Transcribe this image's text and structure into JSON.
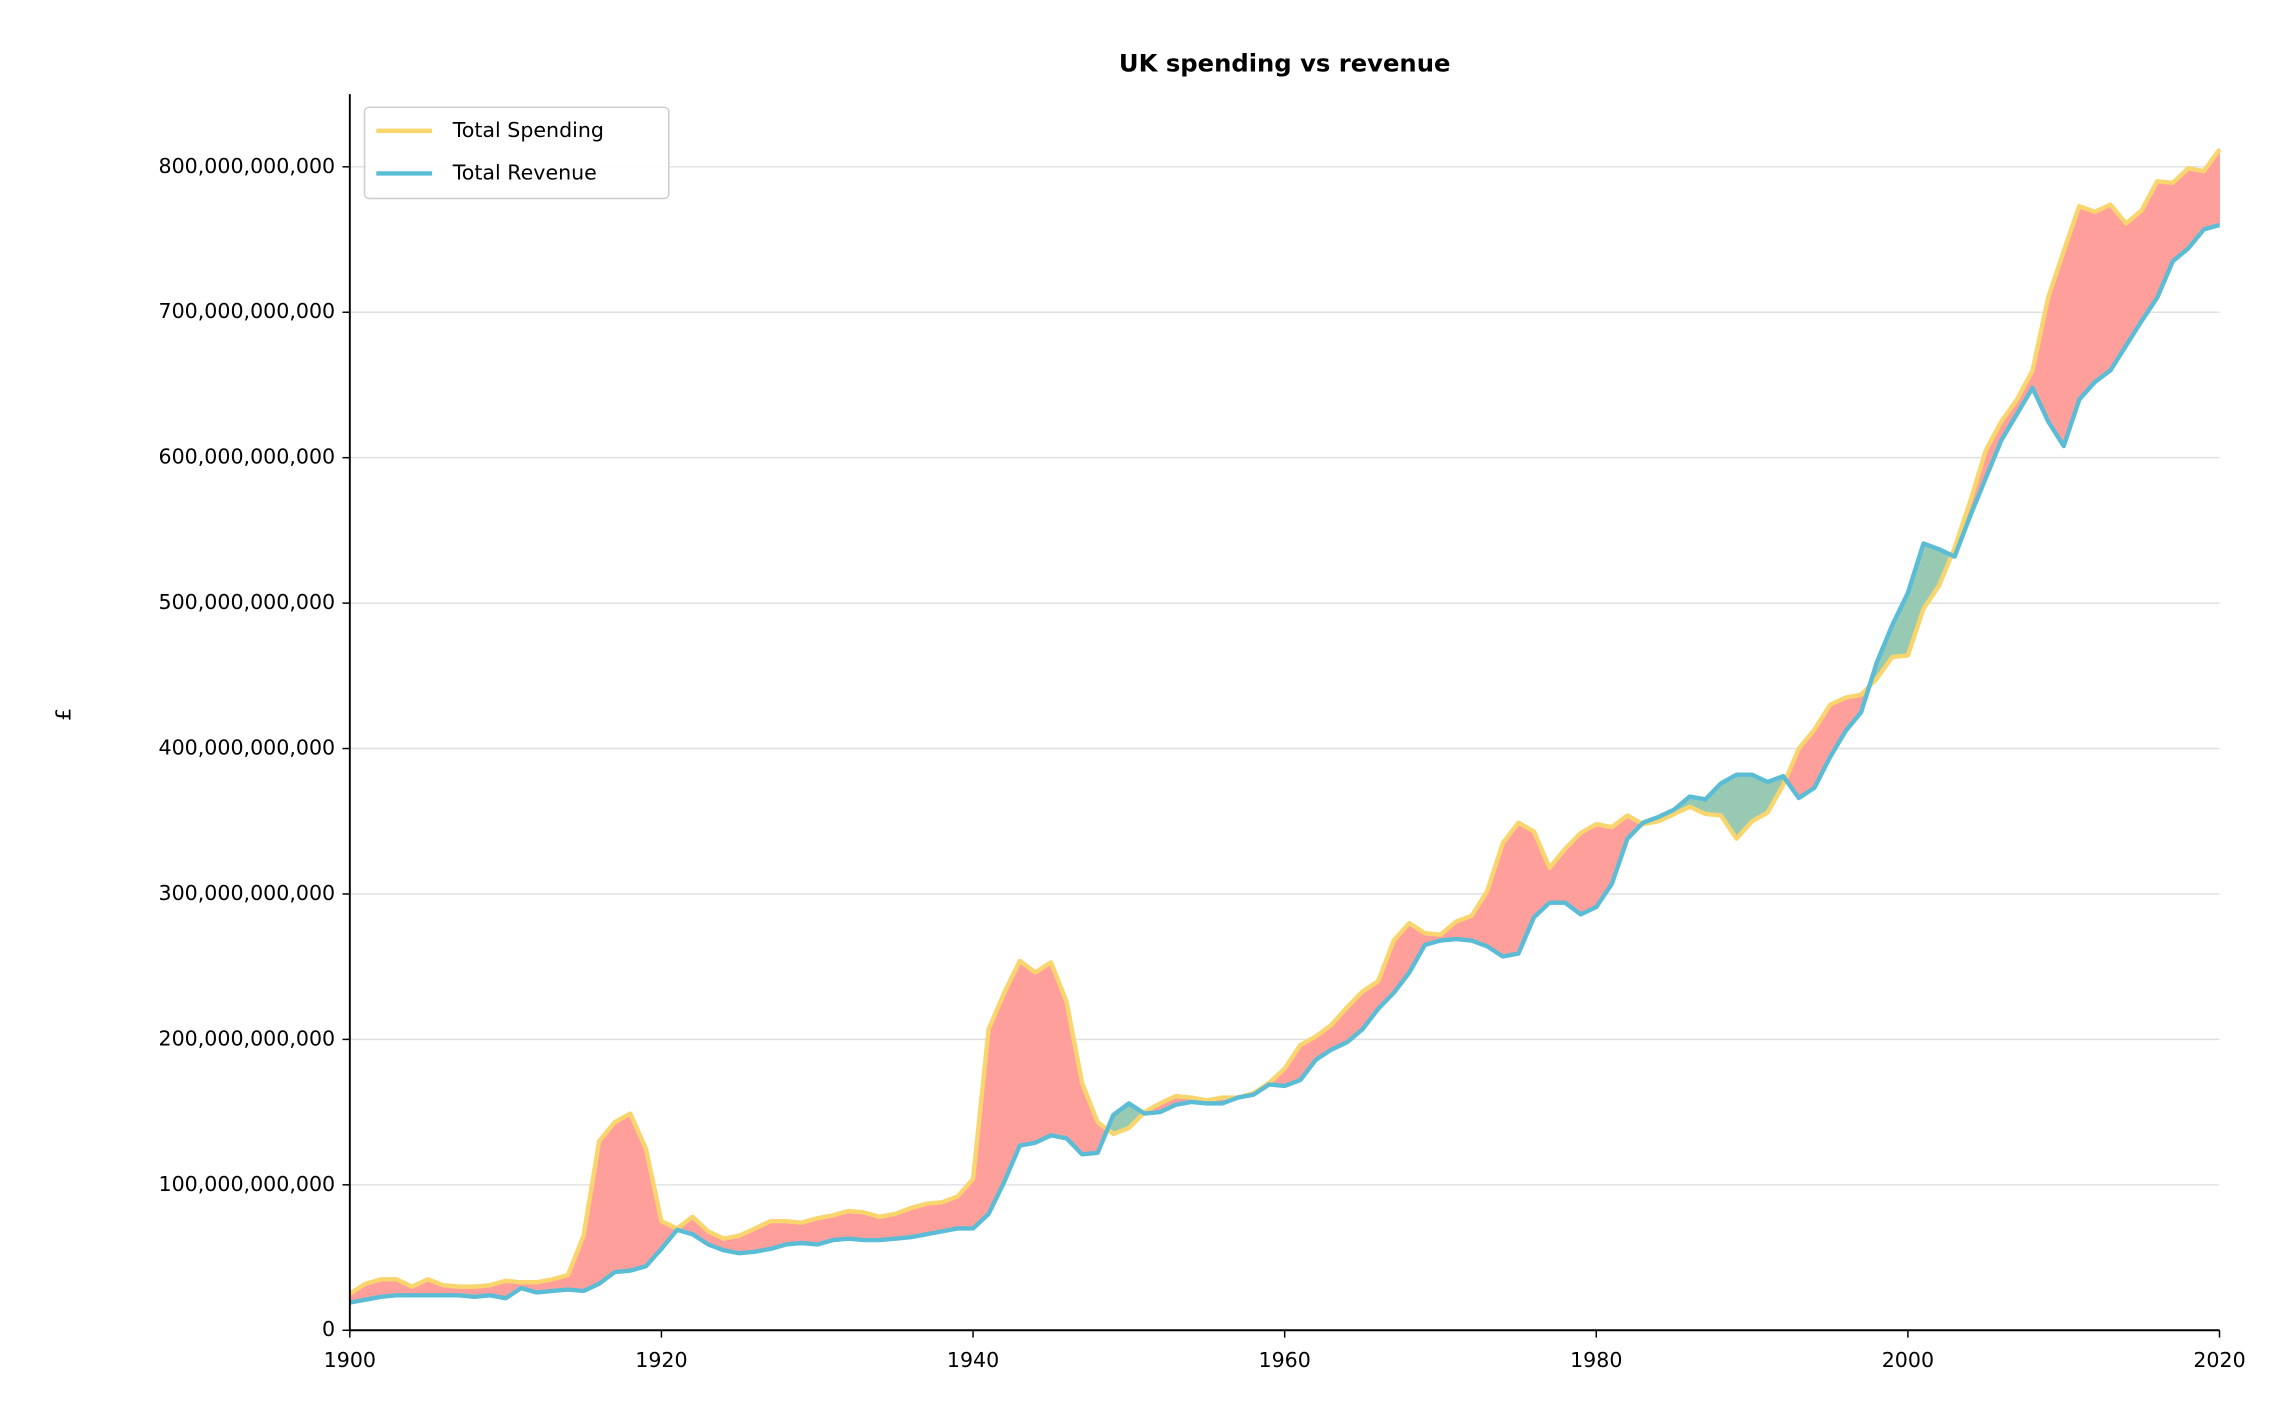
{
  "chart_data": {
    "type": "area_between",
    "title": "UK spending vs revenue",
    "ylabel": "£",
    "x": [
      1900,
      1901,
      1902,
      1903,
      1904,
      1905,
      1906,
      1907,
      1908,
      1909,
      1910,
      1911,
      1912,
      1913,
      1914,
      1915,
      1916,
      1917,
      1918,
      1919,
      1920,
      1921,
      1922,
      1923,
      1924,
      1925,
      1926,
      1927,
      1928,
      1929,
      1930,
      1931,
      1932,
      1933,
      1934,
      1935,
      1936,
      1937,
      1938,
      1939,
      1940,
      1941,
      1942,
      1943,
      1944,
      1945,
      1946,
      1947,
      1948,
      1949,
      1950,
      1951,
      1952,
      1953,
      1954,
      1955,
      1956,
      1957,
      1958,
      1959,
      1960,
      1961,
      1962,
      1963,
      1964,
      1965,
      1966,
      1967,
      1968,
      1969,
      1970,
      1971,
      1972,
      1973,
      1974,
      1975,
      1976,
      1977,
      1978,
      1979,
      1980,
      1981,
      1982,
      1983,
      1984,
      1985,
      1986,
      1987,
      1988,
      1989,
      1990,
      1991,
      1992,
      1993,
      1994,
      1995,
      1996,
      1997,
      1998,
      1999,
      2000,
      2001,
      2002,
      2003,
      2004,
      2005,
      2006,
      2007,
      2008,
      2009,
      2010,
      2011,
      2012,
      2013,
      2014,
      2015,
      2016,
      2017,
      2018,
      2019,
      2020
    ],
    "series": [
      {
        "name": "Total Spending",
        "color": "#f9d56e",
        "values": [
          25000000000.0,
          32000000000.0,
          35000000000.0,
          35000000000.0,
          30000000000.0,
          35000000000.0,
          31000000000.0,
          30000000000.0,
          30000000000.0,
          31000000000.0,
          34000000000.0,
          33000000000.0,
          33000000000.0,
          35000000000.0,
          38000000000.0,
          65000000000.0,
          130000000000.0,
          143000000000.0,
          149000000000.0,
          125000000000.0,
          75000000000.0,
          70000000000.0,
          78000000000.0,
          68000000000.0,
          63000000000.0,
          65000000000.0,
          70000000000.0,
          75000000000.0,
          75000000000.0,
          74000000000.0,
          77000000000.0,
          79000000000.0,
          82000000000.0,
          81000000000.0,
          78000000000.0,
          80000000000.0,
          84000000000.0,
          87000000000.0,
          88000000000.0,
          92000000000.0,
          104000000000.0,
          207000000000.0,
          232000000000.0,
          254000000000.0,
          246000000000.0,
          253000000000.0,
          226000000000.0,
          170000000000.0,
          143000000000.0,
          135000000000.0,
          139000000000.0,
          150000000000.0,
          156000000000.0,
          161000000000.0,
          160000000000.0,
          158000000000.0,
          160000000000.0,
          160000000000.0,
          163000000000.0,
          170000000000.0,
          180000000000.0,
          196000000000.0,
          202000000000.0,
          210000000000.0,
          222000000000.0,
          233000000000.0,
          240000000000.0,
          268000000000.0,
          280000000000.0,
          273000000000.0,
          272000000000.0,
          281000000000.0,
          285000000000.0,
          302000000000.0,
          335000000000.0,
          349000000000.0,
          343000000000.0,
          318000000000.0,
          331000000000.0,
          342000000000.0,
          348000000000.0,
          346000000000.0,
          354000000000.0,
          348000000000.0,
          350000000000.0,
          355000000000.0,
          360000000000.0,
          355000000000.0,
          354000000000.0,
          338000000000.0,
          350000000000.0,
          356000000000.0,
          375000000000.0,
          400000000000.0,
          413000000000.0,
          430000000000.0,
          435000000000.0,
          437000000000.0,
          448000000000.0,
          463000000000.0,
          464000000000.0,
          496000000000.0,
          512000000000.0,
          538000000000.0,
          570000000000.0,
          605000000000.0,
          625000000000.0,
          640000000000.0,
          660000000000.0,
          710000000000.0,
          742000000000.0,
          773000000000.0,
          769000000000.0,
          774000000000.0,
          761000000000.0,
          770000000000.0,
          790000000000.0,
          789000000000.0,
          799000000000.0,
          797000000000.0,
          812000000000.0
        ]
      },
      {
        "name": "Total Revenue",
        "color": "#5bbcd6",
        "values": [
          19000000000.0,
          21000000000.0,
          23000000000.0,
          24000000000.0,
          24000000000.0,
          24000000000.0,
          24000000000.0,
          24000000000.0,
          23000000000.0,
          24000000000.0,
          22000000000.0,
          29000000000.0,
          26000000000.0,
          27000000000.0,
          28000000000.0,
          27000000000.0,
          32000000000.0,
          40000000000.0,
          41000000000.0,
          44000000000.0,
          56000000000.0,
          69000000000.0,
          66000000000.0,
          59000000000.0,
          55000000000.0,
          53000000000.0,
          54000000000.0,
          56000000000.0,
          59000000000.0,
          60000000000.0,
          59000000000.0,
          62000000000.0,
          63000000000.0,
          62000000000.0,
          62000000000.0,
          63000000000.0,
          64000000000.0,
          66000000000.0,
          68000000000.0,
          70000000000.0,
          70000000000.0,
          80000000000.0,
          102000000000.0,
          127000000000.0,
          129000000000.0,
          134000000000.0,
          132000000000.0,
          121000000000.0,
          122000000000.0,
          148000000000.0,
          156000000000.0,
          149000000000.0,
          150000000000.0,
          155000000000.0,
          157000000000.0,
          156000000000.0,
          156000000000.0,
          160000000000.0,
          162000000000.0,
          169000000000.0,
          168000000000.0,
          172000000000.0,
          186000000000.0,
          193000000000.0,
          198000000000.0,
          207000000000.0,
          221000000000.0,
          232000000000.0,
          246000000000.0,
          265000000000.0,
          268000000000.0,
          269000000000.0,
          268000000000.0,
          264000000000.0,
          257000000000.0,
          259000000000.0,
          284000000000.0,
          294000000000.0,
          294000000000.0,
          286000000000.0,
          291000000000.0,
          307000000000.0,
          338000000000.0,
          349000000000.0,
          353000000000.0,
          358000000000.0,
          367000000000.0,
          365000000000.0,
          376000000000.0,
          382000000000.0,
          382000000000.0,
          377000000000.0,
          381000000000.0,
          366000000000.0,
          373000000000.0,
          394000000000.0,
          412000000000.0,
          425000000000.0,
          459000000000.0,
          485000000000.0,
          507000000000.0,
          541000000000.0,
          537000000000.0,
          532000000000.0,
          560000000000.0,
          586000000000.0,
          612000000000.0,
          630000000000.0,
          648000000000.0,
          625000000000.0,
          608000000000.0,
          640000000000.0,
          652000000000.0,
          660000000000.0,
          677000000000.0,
          694000000000.0,
          710000000000.0,
          735000000000.0,
          744000000000.0,
          757000000000.0,
          760000000000.0
        ]
      }
    ],
    "deficit_color": "#ff9f9b",
    "surplus_color": "#98c9b3",
    "xlim": [
      1900,
      2020
    ],
    "xticks": [
      1900,
      1920,
      1940,
      1960,
      1980,
      2000,
      2020
    ],
    "ylim": [
      0,
      850000000000.0
    ],
    "yticks": [
      0,
      {
        "value": 100000000000.0,
        "label": "100,000,000,000"
      },
      {
        "value": 200000000000.0,
        "label": "200,000,000,000"
      },
      {
        "value": 300000000000.0,
        "label": "300,000,000,000"
      },
      {
        "value": 400000000000.0,
        "label": "400,000,000,000"
      },
      {
        "value": 500000000000.0,
        "label": "500,000,000,000"
      },
      {
        "value": 600000000000.0,
        "label": "600,000,000,000"
      },
      {
        "value": 700000000000.0,
        "label": "700,000,000,000"
      },
      {
        "value": 800000000000.0,
        "label": "800,000,000,000"
      }
    ],
    "grid": true,
    "legend": "upper left"
  }
}
